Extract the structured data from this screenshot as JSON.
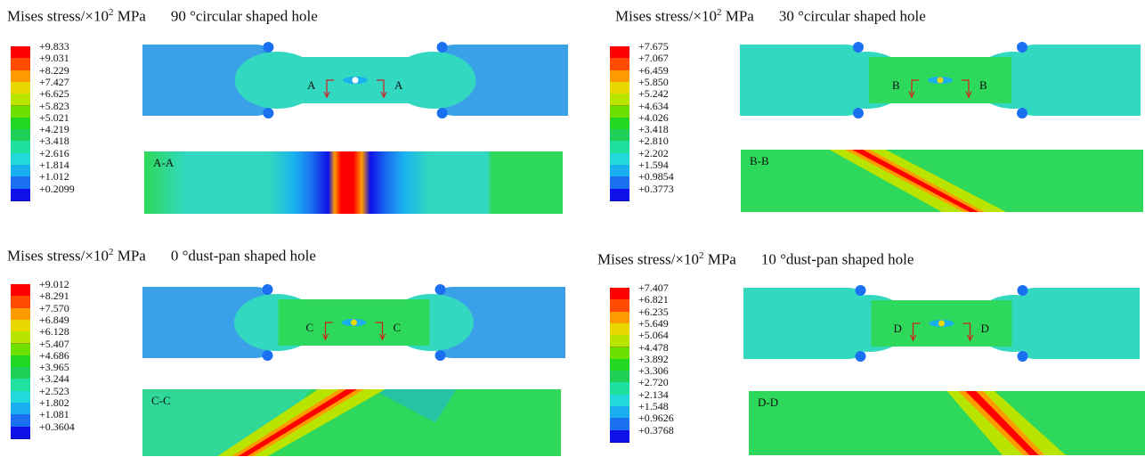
{
  "panels": [
    {
      "id": "p1",
      "stress_label": "Mises stress/×10",
      "exp": "2",
      "unit": "MPa",
      "case": "90 °circular shaped hole",
      "section_letter": "A",
      "section_label": "A-A",
      "legend": [
        "+9.833",
        "+9.031",
        "+8.229",
        "+7.427",
        "+6.625",
        "+5.823",
        "+5.021",
        "+4.219",
        "+3.418",
        "+2.616",
        "+1.814",
        "+1.012",
        "+0.2099"
      ]
    },
    {
      "id": "p2",
      "stress_label": "Mises stress/×10",
      "exp": "2",
      "unit": "MPa",
      "case": "30 °circular shaped hole",
      "section_letter": "B",
      "section_label": "B-B",
      "legend": [
        "+7.675",
        "+7.067",
        "+6.459",
        "+5.850",
        "+5.242",
        "+4.634",
        "+4.026",
        "+3.418",
        "+2.810",
        "+2.202",
        "+1.594",
        "+0.9854",
        "+0.3773"
      ]
    },
    {
      "id": "p3",
      "stress_label": "Mises stress/×10",
      "exp": "2",
      "unit": "MPa",
      "case": "0 °dust-pan shaped hole",
      "section_letter": "C",
      "section_label": "C-C",
      "legend": [
        "+9.012",
        "+8.291",
        "+7.570",
        "+6.849",
        "+6.128",
        "+5.407",
        "+4.686",
        "+3.965",
        "+3.244",
        "+2.523",
        "+1.802",
        "+1.081",
        "+0.3604"
      ]
    },
    {
      "id": "p4",
      "stress_label": "Mises stress/×10",
      "exp": "2",
      "unit": "MPa",
      "case": "10 °dust-pan shaped hole",
      "section_letter": "D",
      "section_label": "D-D",
      "legend": [
        "+7.407",
        "+6.821",
        "+6.235",
        "+5.649",
        "+5.064",
        "+4.478",
        "+3.892",
        "+3.306",
        "+2.720",
        "+2.134",
        "+1.548",
        "+0.9626",
        "+0.3768"
      ]
    }
  ],
  "colors": {
    "scale": [
      "#ff0000",
      "#ff4a00",
      "#ff9a00",
      "#e8d800",
      "#b8e400",
      "#6ee000",
      "#22d822",
      "#1ed056",
      "#20e0a0",
      "#22d8d8",
      "#1ab0f0",
      "#1a70f0",
      "#1010e8"
    ],
    "specimen_blue": "#3aa0e8",
    "specimen_cyan": "#32d8c0",
    "specimen_green": "#2ed85a"
  }
}
